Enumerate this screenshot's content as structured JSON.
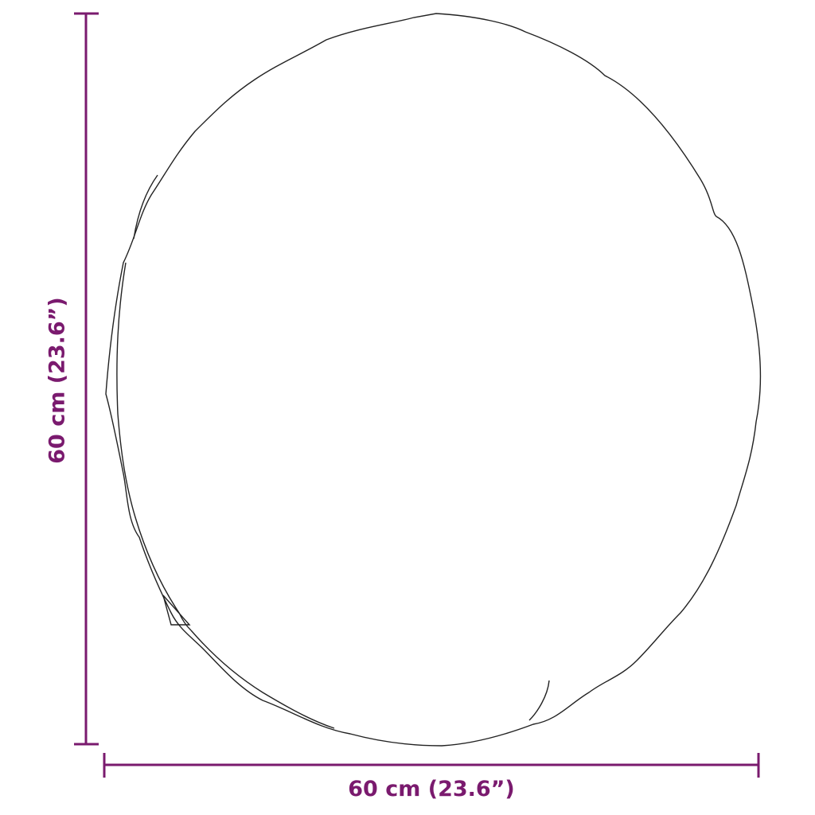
{
  "dimensions": {
    "width_label": "60 cm (23.6”)",
    "height_label": "60 cm (23.6”)"
  },
  "colors": {
    "dimension": "#7a1a6e",
    "outline": "#222222"
  },
  "object": "round-frameless-mirror-outline"
}
